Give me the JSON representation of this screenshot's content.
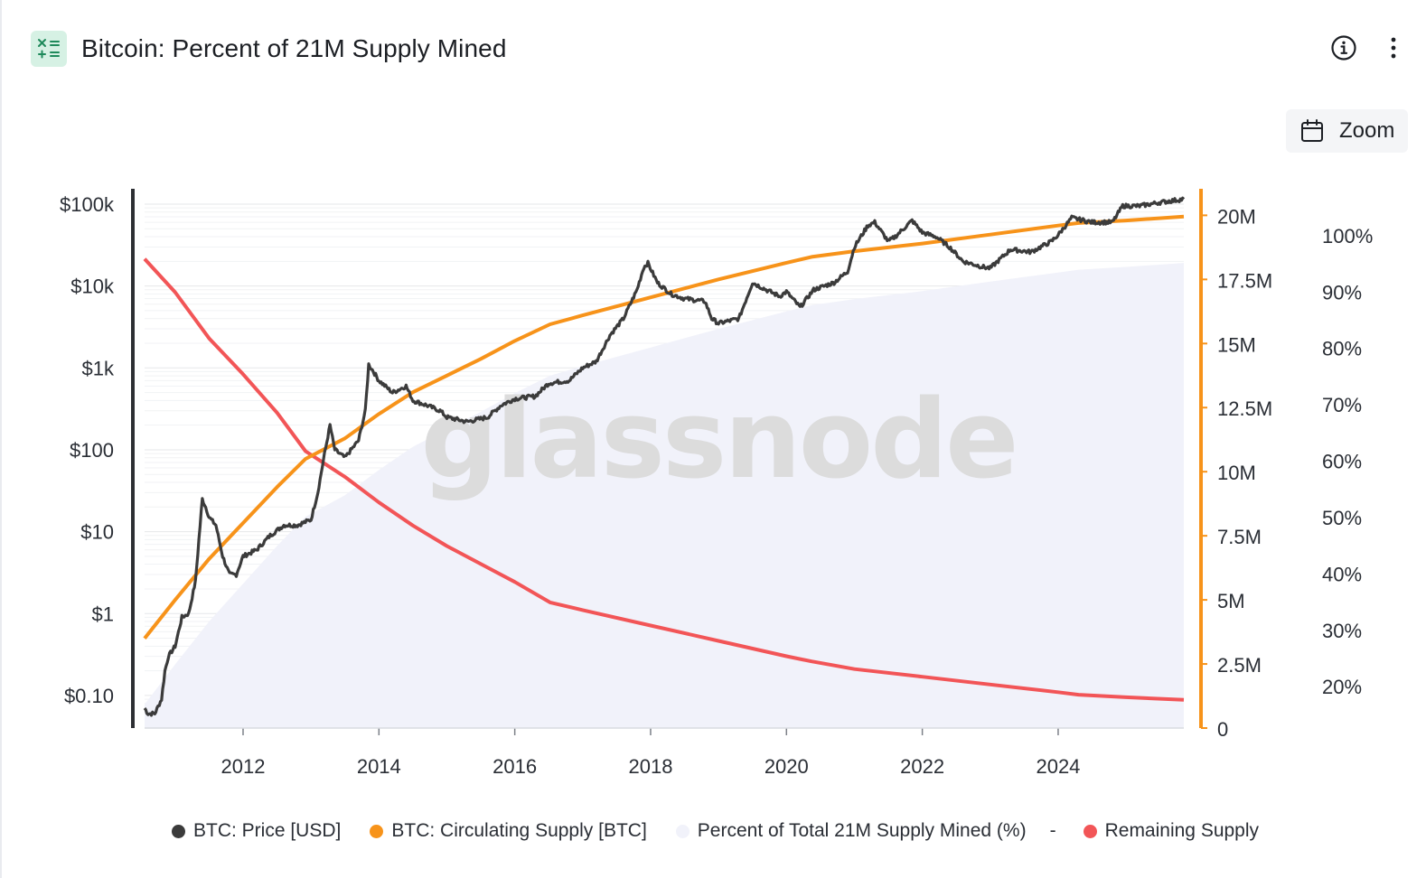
{
  "header": {
    "title": "Bitcoin: Percent of 21M Supply Mined",
    "icon": "calculator-icon"
  },
  "toolbar": {
    "zoom_label": "Zoom",
    "info_icon": "info-icon",
    "more_icon": "more-vertical-icon"
  },
  "watermark": "glassnode",
  "colors": {
    "price": "#3b3b3b",
    "supply": "#f7931a",
    "percent_fill": "#f1f2fa",
    "remaining": "#f25557",
    "brand_icon_bg": "#d6f1e4",
    "brand_icon_fg": "#1f8a5b"
  },
  "legend": {
    "price": "BTC: Price [USD]",
    "supply": "BTC: Circulating Supply [BTC]",
    "percent": "Percent of Total 21M Supply Mined (%)",
    "separator": "-",
    "remaining": "Remaining Supply"
  },
  "chart_data": {
    "type": "line",
    "title": "Bitcoin: Percent of 21M Supply Mined",
    "x_range": [
      2010.55,
      2025.85
    ],
    "x_ticks": [
      "2012",
      "2014",
      "2016",
      "2018",
      "2020",
      "2022",
      "2024"
    ],
    "axes": {
      "price": {
        "scale": "log",
        "range": [
          0.04,
          150000
        ],
        "ticks": [
          "$0.10",
          "$1",
          "$10",
          "$100",
          "$1k",
          "$10k",
          "$100k"
        ]
      },
      "supply": {
        "range": [
          0,
          21000000
        ],
        "ticks": [
          "0",
          "2.5M",
          "5M",
          "7.5M",
          "10M",
          "12.5M",
          "15M",
          "17.5M",
          "20M"
        ]
      },
      "percent": {
        "range": [
          12.5,
          108
        ],
        "ticks": [
          "20%",
          "30%",
          "40%",
          "50%",
          "60%",
          "70%",
          "80%",
          "90%",
          "100%"
        ]
      }
    },
    "series": [
      {
        "name": "BTC: Price [USD]",
        "axis": "price",
        "x": [
          2010.55,
          2010.6,
          2010.7,
          2010.8,
          2010.85,
          2010.9,
          2011.0,
          2011.1,
          2011.2,
          2011.3,
          2011.35,
          2011.4,
          2011.45,
          2011.5,
          2011.6,
          2011.7,
          2011.8,
          2011.9,
          2012.0,
          2012.2,
          2012.4,
          2012.6,
          2012.8,
          2013.0,
          2013.1,
          2013.2,
          2013.28,
          2013.35,
          2013.5,
          2013.7,
          2013.8,
          2013.85,
          2013.92,
          2014.0,
          2014.2,
          2014.4,
          2014.5,
          2014.7,
          2014.9,
          2015.0,
          2015.3,
          2015.6,
          2015.8,
          2016.0,
          2016.3,
          2016.5,
          2016.8,
          2017.0,
          2017.2,
          2017.4,
          2017.6,
          2017.8,
          2017.9,
          2017.96,
          2018.1,
          2018.3,
          2018.5,
          2018.8,
          2018.9,
          2019.0,
          2019.3,
          2019.5,
          2019.7,
          2019.9,
          2020.0,
          2020.2,
          2020.4,
          2020.7,
          2020.9,
          2021.0,
          2021.2,
          2021.3,
          2021.5,
          2021.6,
          2021.85,
          2022.0,
          2022.2,
          2022.4,
          2022.6,
          2022.9,
          2023.0,
          2023.3,
          2023.6,
          2023.9,
          2024.0,
          2024.2,
          2024.5,
          2024.8,
          2024.95,
          2025.2,
          2025.5,
          2025.85
        ],
        "values": [
          0.07,
          0.06,
          0.06,
          0.09,
          0.2,
          0.3,
          0.4,
          0.9,
          1.0,
          2.5,
          8,
          25,
          20,
          15,
          12,
          5,
          3,
          3,
          5,
          6,
          9,
          12,
          12,
          14,
          30,
          90,
          200,
          100,
          80,
          130,
          300,
          1100,
          900,
          700,
          500,
          600,
          400,
          350,
          300,
          250,
          220,
          250,
          350,
          420,
          450,
          650,
          700,
          1000,
          1200,
          2500,
          4000,
          9000,
          17000,
          19000,
          11000,
          8000,
          7000,
          6500,
          4000,
          3500,
          4000,
          11000,
          9000,
          7500,
          8500,
          5500,
          9000,
          11000,
          15000,
          30000,
          55000,
          60000,
          35000,
          40000,
          63000,
          45000,
          40000,
          30000,
          20000,
          17000,
          16500,
          28000,
          26000,
          35000,
          42000,
          68000,
          60000,
          60000,
          95000,
          95000,
          105000,
          115000
        ]
      },
      {
        "name": "BTC: Circulating Supply [BTC]",
        "axis": "supply",
        "x": [
          2010.55,
          2011.0,
          2011.5,
          2012.0,
          2012.5,
          2012.92,
          2013.5,
          2014.0,
          2014.5,
          2015.0,
          2015.5,
          2016.0,
          2016.52,
          2017.0,
          2018.0,
          2019.0,
          2020.0,
          2020.37,
          2021.0,
          2022.0,
          2023.0,
          2024.0,
          2024.3,
          2025.0,
          2025.85
        ],
        "values": [
          3500000,
          5000000,
          6600000,
          8000000,
          9400000,
          10500000,
          11300000,
          12250000,
          13100000,
          13750000,
          14400000,
          15100000,
          15750000,
          16100000,
          16800000,
          17500000,
          18150000,
          18380000,
          18600000,
          18900000,
          19250000,
          19600000,
          19700000,
          19800000,
          19950000
        ]
      },
      {
        "name": "Percent of Total 21M Supply Mined (%)",
        "axis": "percent",
        "x": [
          2010.55,
          2011.0,
          2011.5,
          2012.0,
          2012.5,
          2012.92,
          2013.5,
          2014.0,
          2014.5,
          2015.0,
          2015.5,
          2016.0,
          2016.52,
          2017.0,
          2018.0,
          2019.0,
          2020.0,
          2020.37,
          2021.0,
          2022.0,
          2023.0,
          2024.0,
          2024.3,
          2025.0,
          2025.85
        ],
        "values": [
          16.7,
          23.8,
          31.4,
          38.1,
          44.8,
          50.0,
          53.8,
          58.3,
          62.4,
          65.5,
          68.6,
          71.9,
          75.0,
          76.7,
          80.0,
          83.3,
          86.4,
          87.5,
          88.6,
          90.0,
          91.7,
          93.3,
          93.8,
          94.3,
          95.0
        ]
      },
      {
        "name": "Remaining Supply",
        "axis": "supply",
        "x": [
          2010.55,
          2011.0,
          2011.5,
          2012.0,
          2012.5,
          2012.92,
          2013.5,
          2014.0,
          2014.5,
          2015.0,
          2015.5,
          2016.0,
          2016.52,
          2017.0,
          2018.0,
          2019.0,
          2020.0,
          2020.37,
          2021.0,
          2022.0,
          2023.0,
          2024.0,
          2024.3,
          2025.0,
          2025.85
        ],
        "values": [
          18300000,
          17000000,
          15200000,
          13800000,
          12300000,
          10800000,
          9800000,
          8800000,
          7900000,
          7100000,
          6400000,
          5700000,
          4900000,
          4600000,
          4000000,
          3400000,
          2800000,
          2600000,
          2300000,
          2000000,
          1700000,
          1400000,
          1300000,
          1200000,
          1100000
        ]
      }
    ]
  }
}
